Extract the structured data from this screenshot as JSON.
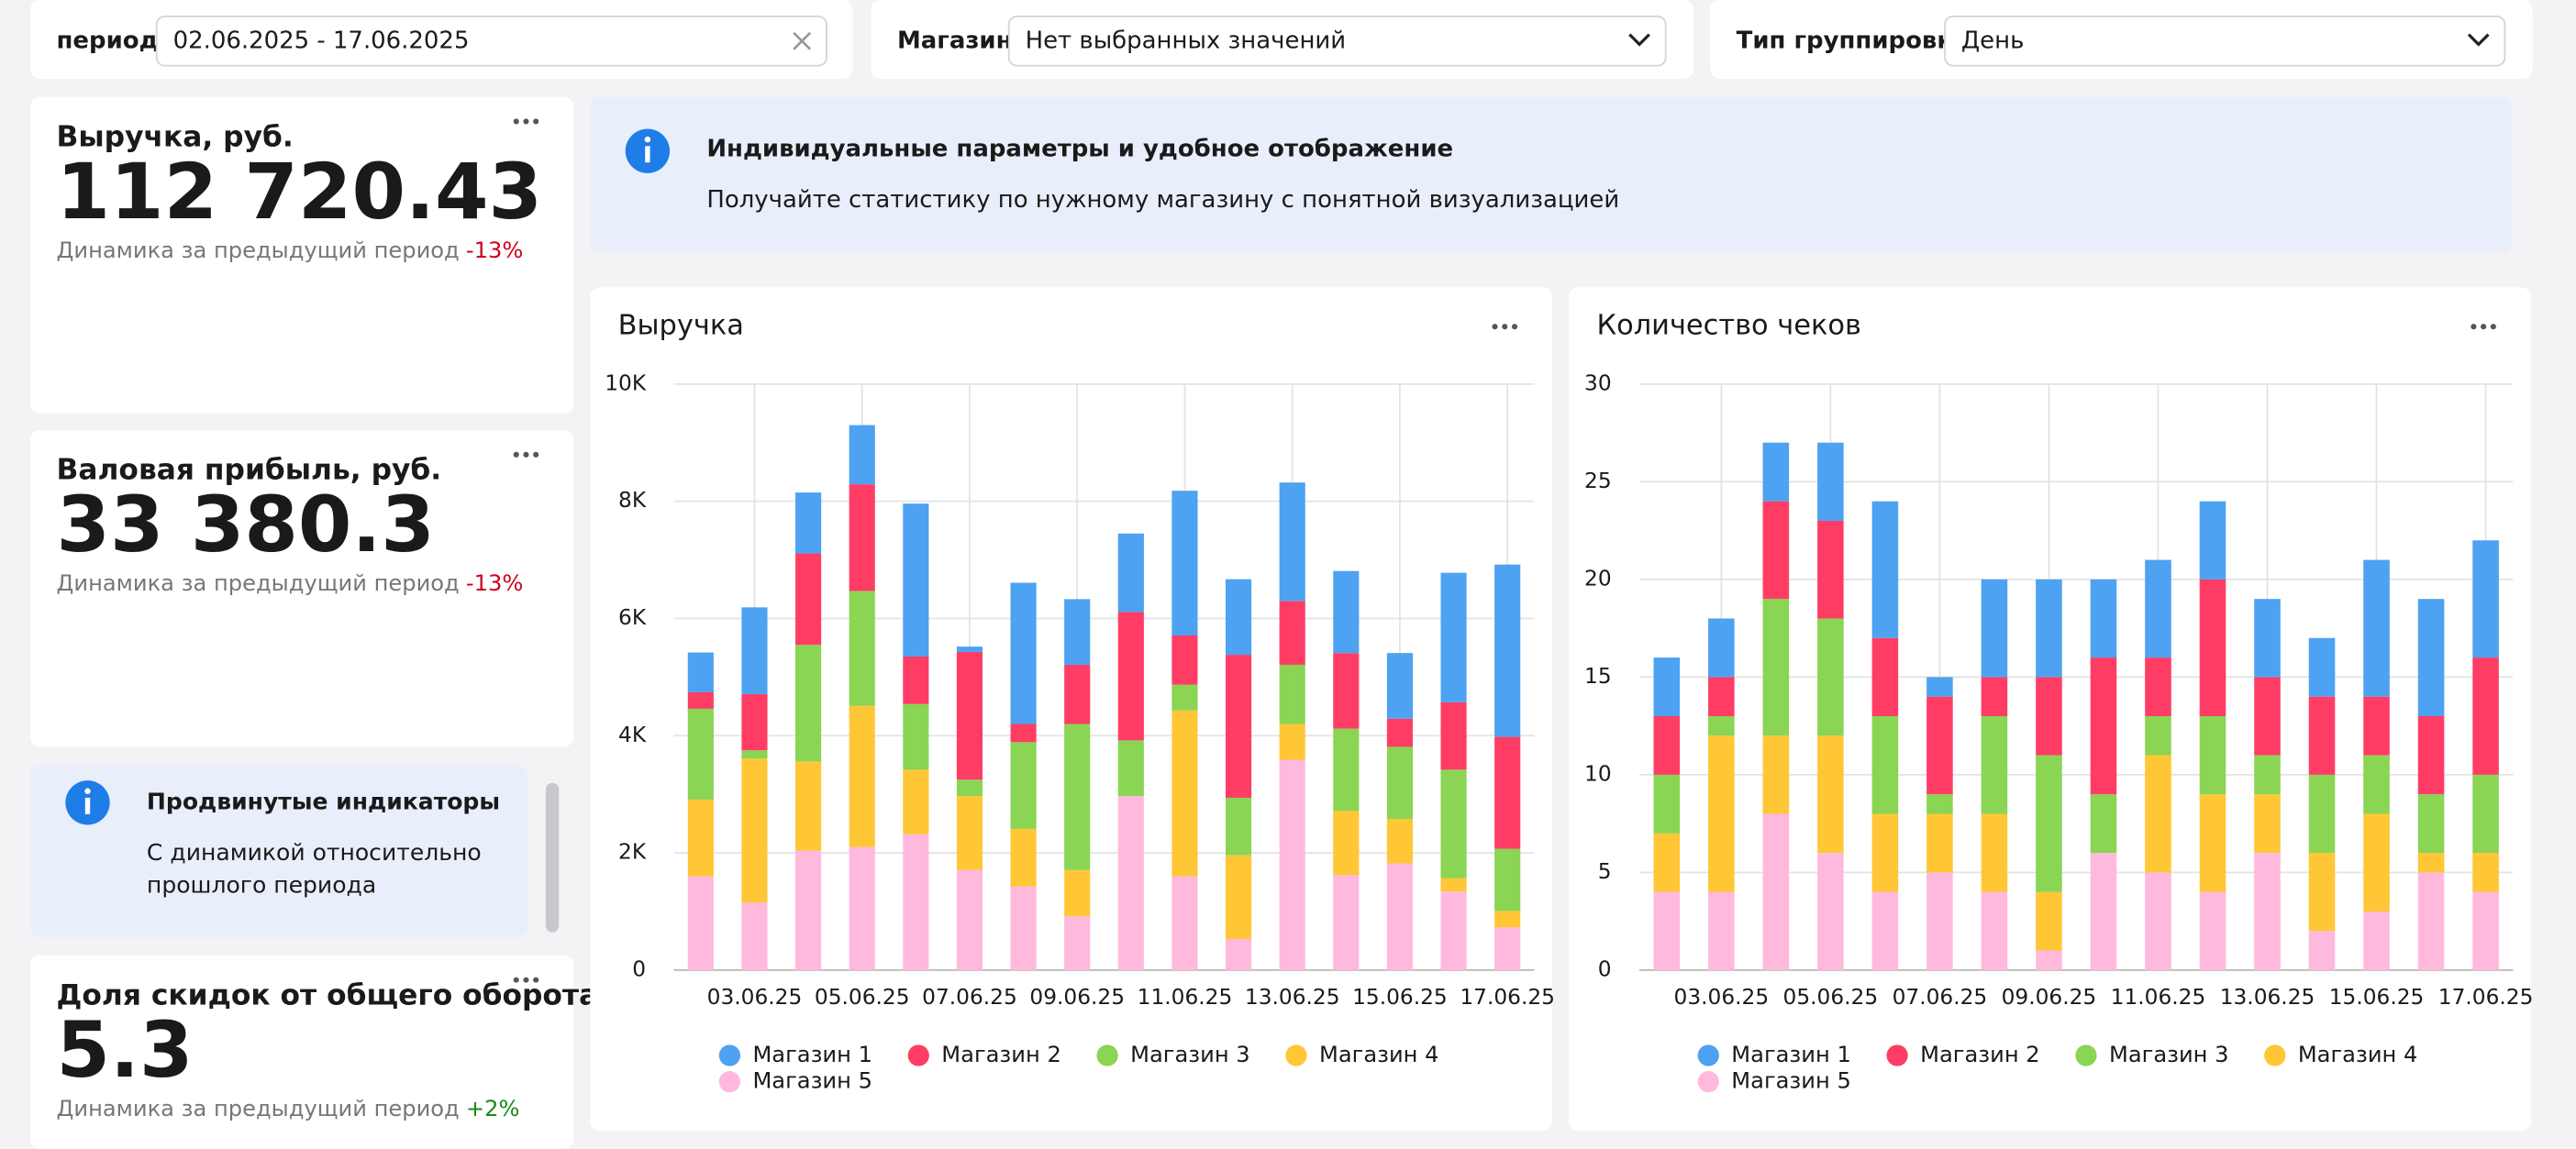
{
  "filters": [
    {
      "label": "период",
      "value": "02.06.2025 - 17.06.2025"
    },
    {
      "label": "Магазин",
      "placeholder": "Нет выбранных значений"
    },
    {
      "label": "Тип группировки",
      "value": "День"
    }
  ],
  "kpis": [
    {
      "title": "Выручка, руб.",
      "value": "112 720.43",
      "note": "Динамика за предыдущий период",
      "change": "-13%"
    },
    {
      "title": "Валовая прибыль, руб.",
      "value": "33 380.3",
      "note": "Динамика за предыдущий период",
      "change": "-13%"
    },
    {
      "title": "Доля скидок от общего оборота, %",
      "value": "5.3",
      "note": "Динамика за предыдущий период",
      "change": "+2%"
    }
  ],
  "banner": {
    "title": "Индивидуальные параметры и удобное отображение",
    "text": "Получайте статистику по нужному магазину с понятной визуализацией"
  },
  "side_banner": {
    "title": "Продвинутые индикаторы",
    "lines": [
      "С динамикой относительно",
      "прошлого периода"
    ]
  },
  "chart_data": [
    {
      "type": "bar",
      "stacked": true,
      "title": "Выручка",
      "legend": "bottom",
      "grid": true,
      "categories": [
        null,
        "03.06.25",
        null,
        "05.06.25",
        null,
        "07.06.25",
        null,
        "09.06.25",
        null,
        "11.06.25",
        null,
        "13.06.25",
        null,
        "15.06.25",
        null,
        "17.06.25"
      ],
      "series": [
        {
          "name": "Магазин 1",
          "color": "#4da2f1",
          "values": [
            680,
            1480,
            1040,
            1010,
            2610,
            90,
            2410,
            1120,
            1340,
            2470,
            1290,
            2020,
            1400,
            1120,
            2210,
            2940
          ]
        },
        {
          "name": "Магазин 2",
          "color": "#ff3d64",
          "values": [
            280,
            960,
            1560,
            1820,
            810,
            2180,
            310,
            1010,
            2190,
            840,
            2440,
            1090,
            1290,
            480,
            1150,
            1910
          ]
        },
        {
          "name": "Магазин 3",
          "color": "#8ad554",
          "values": [
            1550,
            140,
            1990,
            1960,
            1120,
            280,
            1480,
            2490,
            950,
            440,
            980,
            1010,
            1400,
            1230,
            1850,
            1060
          ]
        },
        {
          "name": "Магазин 4",
          "color": "#ffc636",
          "values": [
            1310,
            2460,
            1520,
            2410,
            1100,
            1260,
            980,
            790,
            0,
            2830,
            1430,
            610,
            1100,
            760,
            230,
            280
          ]
        },
        {
          "name": "Магазин 5",
          "color": "#ffb9dd",
          "values": [
            1600,
            1150,
            2040,
            2100,
            2320,
            1710,
            1430,
            920,
            2970,
            1600,
            530,
            3590,
            1620,
            1820,
            1340,
            730
          ]
        }
      ],
      "ylim": [
        0,
        10000
      ],
      "yticks": [
        0,
        {
          "value": 2000,
          "label": "2K"
        },
        {
          "value": 4000,
          "label": "4K"
        },
        {
          "value": 6000,
          "label": "6K"
        },
        {
          "value": 8000,
          "label": "8K"
        },
        {
          "value": 10000,
          "label": "10K"
        }
      ]
    },
    {
      "type": "bar",
      "stacked": true,
      "title": "Количество чеков",
      "legend": "bottom",
      "grid": true,
      "categories": [
        null,
        "03.06.25",
        null,
        "05.06.25",
        null,
        "07.06.25",
        null,
        "09.06.25",
        null,
        "11.06.25",
        null,
        "13.06.25",
        null,
        "15.06.25",
        null,
        "17.06.25"
      ],
      "series": [
        {
          "name": "Магазин 1",
          "color": "#4da2f1",
          "values": [
            3,
            3,
            3,
            4,
            7,
            1,
            5,
            5,
            4,
            5,
            4,
            4,
            3,
            7,
            6,
            6
          ]
        },
        {
          "name": "Магазин 2",
          "color": "#ff3d64",
          "values": [
            3,
            2,
            5,
            5,
            4,
            5,
            2,
            4,
            7,
            3,
            7,
            4,
            4,
            3,
            4,
            6
          ]
        },
        {
          "name": "Магазин 3",
          "color": "#8ad554",
          "values": [
            3,
            1,
            7,
            6,
            5,
            1,
            5,
            7,
            3,
            2,
            4,
            2,
            4,
            3,
            3,
            4
          ]
        },
        {
          "name": "Магазин 4",
          "color": "#ffc636",
          "values": [
            3,
            8,
            4,
            6,
            4,
            3,
            4,
            3,
            0,
            6,
            5,
            3,
            4,
            5,
            1,
            2
          ]
        },
        {
          "name": "Магазин 5",
          "color": "#ffb9dd",
          "values": [
            4,
            4,
            8,
            6,
            4,
            5,
            4,
            1,
            6,
            5,
            4,
            6,
            2,
            3,
            5,
            4
          ]
        }
      ],
      "ylim": [
        0,
        30
      ],
      "yticks": [
        0,
        5,
        10,
        15,
        20,
        25,
        30
      ]
    }
  ]
}
